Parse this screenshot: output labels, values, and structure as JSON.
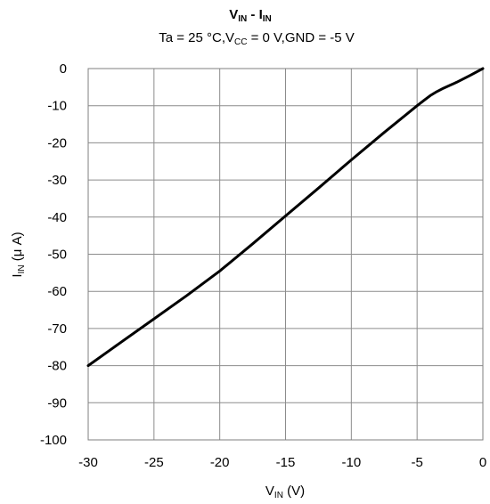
{
  "chart_data": {
    "type": "line",
    "title": {
      "main": "V",
      "main_sub": "IN",
      "sep": " - I",
      "sep_sub": "IN"
    },
    "subtitle": {
      "p1": "Ta = 25 °C,V",
      "p1_sub": "CC",
      "p2": " = 0 V,GND = -5 V"
    },
    "xlabel": {
      "main": "V",
      "sub": "IN",
      "unit": " (V)"
    },
    "ylabel": {
      "main": "I",
      "sub": "IN",
      "unit": " (μ A)"
    },
    "xlim": [
      -30,
      0
    ],
    "ylim": [
      -100,
      0
    ],
    "x_ticks": [
      "-30",
      "-25",
      "-20",
      "-15",
      "-10",
      "-5",
      "0"
    ],
    "y_ticks": [
      "0",
      "-10",
      "-20",
      "-30",
      "-40",
      "-50",
      "-60",
      "-70",
      "-80",
      "-90",
      "-100"
    ],
    "grid": true,
    "series": [
      {
        "color": "#000000",
        "x": [
          -30,
          -27.5,
          -25,
          -22.5,
          -20,
          -17.5,
          -15,
          -12.5,
          -10,
          -7.5,
          -5,
          -4.5,
          -4,
          -3.5,
          -3,
          -2.5,
          -2,
          -1,
          0
        ],
        "y": [
          -80,
          -73.7,
          -67.4,
          -61.1,
          -54.5,
          -47.2,
          -39.7,
          -32.2,
          -24.6,
          -17.2,
          -10,
          -8.6,
          -7.3,
          -6.2,
          -5.3,
          -4.5,
          -3.7,
          -1.9,
          0
        ]
      }
    ]
  }
}
